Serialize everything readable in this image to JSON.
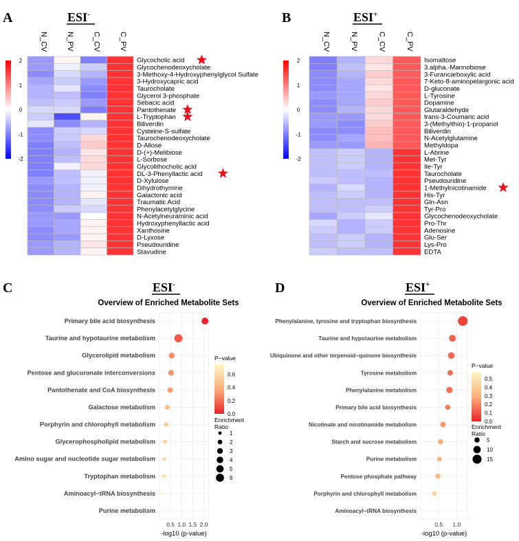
{
  "figure": {
    "panel_labels": [
      "A",
      "B",
      "C",
      "D"
    ],
    "esi_neg": "ESI",
    "esi_neg_sup": "-",
    "esi_pos": "ESI",
    "esi_pos_sup": "+"
  },
  "chart_data": [
    {
      "type": "heatmap",
      "panel": "A",
      "title": "ESI-",
      "columns": [
        "N_CV",
        "N_PV",
        "C_CV",
        "C_PV"
      ],
      "scale_ticks": [
        "2",
        "1",
        "0",
        "-1",
        "-2"
      ],
      "scale_range": [
        -2,
        2
      ],
      "rows": [
        {
          "label": "Glycocholic acid",
          "values": [
            -0.8,
            0.1,
            -1.0,
            1.6
          ],
          "star": true
        },
        {
          "label": "Glycochenodeoxycholate",
          "values": [
            -0.8,
            -0.1,
            -0.4,
            1.6
          ],
          "star": false
        },
        {
          "label": "3-Methoxy-4-Hydroxyphenylglycol Sulfate",
          "values": [
            -0.9,
            -0.3,
            -0.6,
            1.6
          ],
          "star": false
        },
        {
          "label": "3-Hydroxycapric acid",
          "values": [
            -0.7,
            -0.4,
            -0.8,
            1.6
          ],
          "star": false
        },
        {
          "label": "Taurocholate",
          "values": [
            -0.6,
            -0.2,
            -0.9,
            1.6
          ],
          "star": false
        },
        {
          "label": "Glycerol 3-phosphate",
          "values": [
            -0.6,
            -0.5,
            -1.0,
            1.6
          ],
          "star": false
        },
        {
          "label": "Sebacic acid",
          "values": [
            -0.5,
            -0.4,
            -0.8,
            1.6
          ],
          "star": false
        },
        {
          "label": "Pantothenate",
          "values": [
            -0.3,
            -0.3,
            -1.0,
            1.6
          ],
          "star": true
        },
        {
          "label": "L-Tryptophan",
          "values": [
            -0.4,
            -1.4,
            0.1,
            1.6
          ],
          "star": true
        },
        {
          "label": "Biliverdin",
          "values": [
            -0.2,
            -0.9,
            -0.6,
            1.6
          ],
          "star": false
        },
        {
          "label": "Cysteine-S-sulfate",
          "values": [
            -0.9,
            -0.4,
            -0.3,
            1.6
          ],
          "star": false
        },
        {
          "label": "Taurochenodeoxycholate",
          "values": [
            -0.9,
            -0.4,
            0.3,
            1.6
          ],
          "star": false
        },
        {
          "label": "D-Allose",
          "values": [
            -1.0,
            -0.5,
            0.4,
            1.6
          ],
          "star": false
        },
        {
          "label": "D-(+)-Melibiose",
          "values": [
            -1.0,
            -0.6,
            0.2,
            1.6
          ],
          "star": false
        },
        {
          "label": "L-Sorbose",
          "values": [
            -1.0,
            -0.5,
            0.3,
            1.6
          ],
          "star": false
        },
        {
          "label": "Glycolithocholic acid",
          "values": [
            -1.0,
            -0.1,
            0.3,
            1.6
          ],
          "star": false
        },
        {
          "label": "DL-3-Phenyllactic acid",
          "values": [
            -1.0,
            -0.5,
            -0.1,
            1.6
          ],
          "star": true
        },
        {
          "label": "D-Xylulose",
          "values": [
            -0.8,
            -0.5,
            -0.1,
            1.6
          ],
          "star": false
        },
        {
          "label": "Dihydrothymine",
          "values": [
            -0.9,
            -0.6,
            -0.1,
            1.6
          ],
          "star": false
        },
        {
          "label": "Galactonic acid",
          "values": [
            -0.9,
            -0.6,
            0.1,
            1.6
          ],
          "star": false
        },
        {
          "label": "Traumatic Acid",
          "values": [
            -0.9,
            -0.6,
            -0.2,
            1.6
          ],
          "star": false
        },
        {
          "label": "Phenylacetylglycine",
          "values": [
            -0.9,
            -0.4,
            -0.3,
            1.6
          ],
          "star": false
        },
        {
          "label": "N-Acetylneuraminic acid",
          "values": [
            -0.8,
            -0.8,
            0.0,
            1.6
          ],
          "star": false
        },
        {
          "label": "Hydroxyphenyllactic acid",
          "values": [
            -0.8,
            -0.7,
            0.1,
            1.6
          ],
          "star": false
        },
        {
          "label": "Xanthosine",
          "values": [
            -0.9,
            -0.7,
            0.1,
            1.6
          ],
          "star": false
        },
        {
          "label": "D-Lyxose",
          "values": [
            -0.9,
            -0.8,
            0.1,
            1.6
          ],
          "star": false
        },
        {
          "label": "Pseudouridine",
          "values": [
            -0.8,
            -0.6,
            0.2,
            1.6
          ],
          "star": false
        },
        {
          "label": "Stavudine",
          "values": [
            -0.8,
            -0.6,
            0.1,
            1.6
          ],
          "star": false
        }
      ]
    },
    {
      "type": "heatmap",
      "panel": "B",
      "title": "ESI+",
      "columns": [
        "N_CV",
        "N_PV",
        "C_CV",
        "C_PV"
      ],
      "scale_ticks": [
        "2",
        "1",
        "0",
        "-1",
        "-2"
      ],
      "scale_range": [
        -2,
        2
      ],
      "rows": [
        {
          "label": "Isomaltose",
          "values": [
            -1.0,
            -0.6,
            0.3,
            1.3
          ],
          "star": false
        },
        {
          "label": "3.alpha.-Mannobiose",
          "values": [
            -1.0,
            -0.5,
            0.2,
            1.3
          ],
          "star": false
        },
        {
          "label": "3-Furancarboxylic acid",
          "values": [
            -0.9,
            -0.6,
            0.4,
            1.3
          ],
          "star": false
        },
        {
          "label": "7-Keto-8-aminopelargonic acid",
          "values": [
            -0.9,
            -0.7,
            0.3,
            1.3
          ],
          "star": false
        },
        {
          "label": "D-gluconate",
          "values": [
            -0.9,
            -0.7,
            0.2,
            1.3
          ],
          "star": false
        },
        {
          "label": "L-Tyrosine",
          "values": [
            -0.8,
            -0.7,
            0.3,
            1.3
          ],
          "star": false
        },
        {
          "label": "Dopamine",
          "values": [
            -0.9,
            -0.7,
            0.4,
            1.3
          ],
          "star": false
        },
        {
          "label": "Glutaraldehyde",
          "values": [
            -0.9,
            -0.6,
            0.3,
            1.3
          ],
          "star": false
        },
        {
          "label": "trans-3-Coumaric acid",
          "values": [
            -0.8,
            -0.8,
            0.3,
            1.3
          ],
          "star": false
        },
        {
          "label": "3-(Methylthio)-1-propanol",
          "values": [
            -0.8,
            -0.9,
            0.4,
            1.3
          ],
          "star": false
        },
        {
          "label": "Biliverdin",
          "values": [
            -0.9,
            -0.9,
            0.5,
            1.3
          ],
          "star": false
        },
        {
          "label": "N-Acetylglutamine",
          "values": [
            -0.9,
            -0.7,
            0.5,
            1.3
          ],
          "star": false
        },
        {
          "label": "Methyldopa",
          "values": [
            -0.8,
            -0.8,
            0.6,
            1.3
          ],
          "star": false
        },
        {
          "label": "L-Abrine",
          "values": [
            -0.5,
            -0.4,
            -0.6,
            1.6
          ],
          "star": false
        },
        {
          "label": "Met-Tyr",
          "values": [
            -0.5,
            -0.4,
            -0.6,
            1.6
          ],
          "star": false
        },
        {
          "label": "Ile-Tyr",
          "values": [
            -0.5,
            -0.4,
            -0.6,
            1.6
          ],
          "star": false
        },
        {
          "label": "Taurocholate",
          "values": [
            -0.5,
            -0.5,
            -0.5,
            1.6
          ],
          "star": false
        },
        {
          "label": "Pseudouridine",
          "values": [
            -0.4,
            -0.5,
            -0.6,
            1.6
          ],
          "star": false
        },
        {
          "label": "1-Methylnicotinamide",
          "values": [
            -0.6,
            -0.3,
            -0.6,
            1.6
          ],
          "star": true
        },
        {
          "label": "His-Tyr",
          "values": [
            -0.5,
            -0.4,
            -0.6,
            1.6
          ],
          "star": false
        },
        {
          "label": "Gln-Asn",
          "values": [
            -0.5,
            -0.5,
            -0.5,
            1.6
          ],
          "star": false
        },
        {
          "label": "Tyr-Pro",
          "values": [
            -0.5,
            -0.5,
            -0.4,
            1.6
          ],
          "star": false
        },
        {
          "label": "Glycochenodeoxycholate",
          "values": [
            -0.7,
            -0.4,
            -0.2,
            1.6
          ],
          "star": false
        },
        {
          "label": "Pro-Thr",
          "values": [
            -0.3,
            -0.6,
            -0.4,
            1.6
          ],
          "star": false
        },
        {
          "label": "Adenosine",
          "values": [
            -0.4,
            -0.6,
            -0.4,
            1.6
          ],
          "star": false
        },
        {
          "label": "Glu-Ser",
          "values": [
            -0.5,
            -0.4,
            -0.6,
            1.6
          ],
          "star": false
        },
        {
          "label": "Lys-Pro",
          "values": [
            -0.5,
            -0.4,
            -0.6,
            1.6
          ],
          "star": false
        },
        {
          "label": "EDTA",
          "values": [
            -0.4,
            -0.5,
            -0.5,
            1.6
          ],
          "star": false
        }
      ]
    },
    {
      "type": "scatter",
      "panel": "C",
      "header": "ESI-",
      "title": "Overview of Enriched Metabolite Sets",
      "xlabel": "-log10 (p-value)",
      "xticks": [
        "0.5",
        "1.0",
        "1.5",
        "2.0"
      ],
      "xlim": [
        0,
        2.2
      ],
      "pvalue_legend_title": "P−value",
      "pvalue_ticks": [
        "0.6",
        "0.4",
        "0.2",
        "0.0"
      ],
      "pvalue_range": [
        0,
        0.75
      ],
      "ratio_legend_title": "Enrichment\nRatio",
      "ratio_ticks": [
        "1",
        "2",
        "3",
        "4",
        "5",
        "6"
      ],
      "points": [
        {
          "label": "Primary bile acid biosynthesis",
          "x": 2.05,
          "p": 0.009,
          "ratio": 4.3
        },
        {
          "label": "Taurine and hypotaurine metabolism",
          "x": 0.85,
          "p": 0.14,
          "ratio": 6.0
        },
        {
          "label": "Glycerolipid metabolism",
          "x": 0.55,
          "p": 0.28,
          "ratio": 3.0
        },
        {
          "label": "Pentose and glucuronate interconversions",
          "x": 0.52,
          "p": 0.3,
          "ratio": 2.9
        },
        {
          "label": "Pantothenate and CoA biosynthesis",
          "x": 0.48,
          "p": 0.33,
          "ratio": 2.6
        },
        {
          "label": "Galactose metabolism",
          "x": 0.35,
          "p": 0.45,
          "ratio": 2.1
        },
        {
          "label": "Porphyrin and chlorophyll metabolism",
          "x": 0.3,
          "p": 0.5,
          "ratio": 1.8
        },
        {
          "label": "Glycerophospholipid metabolism",
          "x": 0.25,
          "p": 0.56,
          "ratio": 1.6
        },
        {
          "label": "Amino sugar and nucleotide sugar metabolism",
          "x": 0.22,
          "p": 0.6,
          "ratio": 1.5
        },
        {
          "label": "Tryptophan metabolism",
          "x": 0.2,
          "p": 0.63,
          "ratio": 1.4
        },
        {
          "label": "Aminoacyl−tRNA biosynthesis",
          "x": 0.12,
          "p": 0.76,
          "ratio": 1.1
        },
        {
          "label": "Purine metabolism",
          "x": 0.0,
          "p": 1.0,
          "ratio": 0
        }
      ]
    },
    {
      "type": "scatter",
      "panel": "D",
      "header": "ESI+",
      "title": "Overview of Enriched Metabolite Sets",
      "xlabel": "-log10 (p-value)",
      "xticks": [
        "0.5",
        "1.0"
      ],
      "xlim": [
        0,
        1.3
      ],
      "pvalue_legend_title": "P−value",
      "pvalue_ticks": [
        "0.5",
        "0.4",
        "0.3",
        "0.2",
        "0.1",
        "0.0"
      ],
      "pvalue_range": [
        0,
        0.58
      ],
      "ratio_legend_title": "Enrichment\nRatio",
      "ratio_ticks": [
        "5",
        "10",
        "15"
      ],
      "points": [
        {
          "label": "Phenylalanine, tyrosine and tryptophan biosynthesis",
          "x": 1.17,
          "p": 0.07,
          "ratio": 17
        },
        {
          "label": "Taurine and hypotaurine metabolism",
          "x": 0.88,
          "p": 0.13,
          "ratio": 8.5
        },
        {
          "label": "Ubiquinone and other terpenoid−quinone biosynthesis",
          "x": 0.85,
          "p": 0.14,
          "ratio": 8.0
        },
        {
          "label": "Tyrosine metabolism",
          "x": 0.82,
          "p": 0.15,
          "ratio": 5.5
        },
        {
          "label": "Phenylalanine metabolism",
          "x": 0.8,
          "p": 0.16,
          "ratio": 7.5
        },
        {
          "label": "Primary bile acid biosynthesis",
          "x": 0.75,
          "p": 0.18,
          "ratio": 5.0
        },
        {
          "label": "Nicotinate and nicotinamide metabolism",
          "x": 0.62,
          "p": 0.24,
          "ratio": 5.5
        },
        {
          "label": "Starch and sucrose metabolism",
          "x": 0.55,
          "p": 0.28,
          "ratio": 5.0
        },
        {
          "label": "Purine metabolism",
          "x": 0.52,
          "p": 0.3,
          "ratio": 4.0
        },
        {
          "label": "Pentose phosphate pathway",
          "x": 0.48,
          "p": 0.33,
          "ratio": 5.0
        },
        {
          "label": "Porphyrin and chlorophyll metabolism",
          "x": 0.38,
          "p": 0.42,
          "ratio": 4.0
        },
        {
          "label": "Aminoacyl−tRNA biosynthesis",
          "x": 0.0,
          "p": 1.0,
          "ratio": 0
        }
      ]
    }
  ]
}
